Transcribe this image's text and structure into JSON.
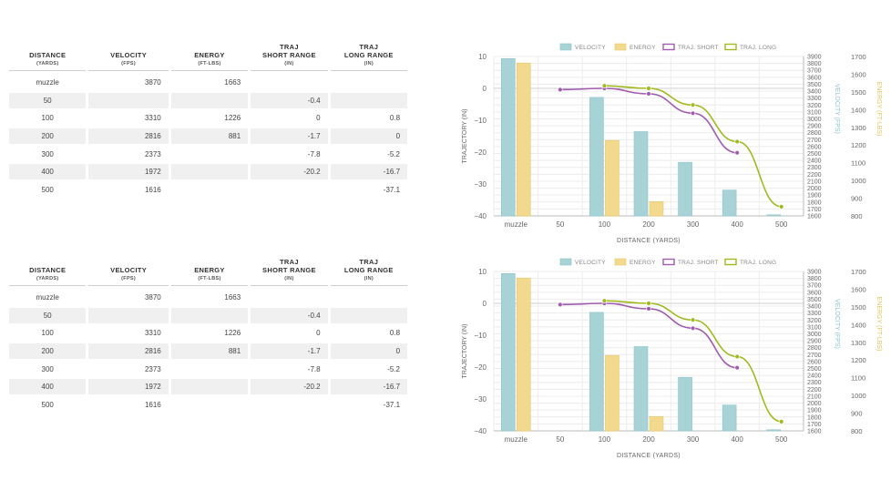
{
  "table": {
    "headers": [
      {
        "title": "DISTANCE",
        "sub": "(YARDS)"
      },
      {
        "title": "VELOCITY",
        "sub": "(FPS)"
      },
      {
        "title": "ENERGY",
        "sub": "(FT-LBS)"
      },
      {
        "title": "TRAJ SHORT RANGE",
        "title_l1": "TRAJ",
        "title_l2": "SHORT RANGE",
        "sub": "(IN)"
      },
      {
        "title": "TRAJ LONG RANGE",
        "title_l1": "TRAJ",
        "title_l2": "LONG RANGE",
        "sub": "(IN)"
      }
    ],
    "rows": [
      [
        "muzzle",
        "3870",
        "1663",
        "",
        ""
      ],
      [
        "50",
        "",
        "",
        "-0.4",
        ""
      ],
      [
        "100",
        "3310",
        "1226",
        "0",
        "0.8"
      ],
      [
        "200",
        "2816",
        "881",
        "-1.7",
        "0"
      ],
      [
        "300",
        "2373",
        "",
        "-7.8",
        "-5.2"
      ],
      [
        "400",
        "1972",
        "",
        "-20.2",
        "-16.7"
      ],
      [
        "500",
        "1616",
        "",
        "",
        "-37.1"
      ]
    ]
  },
  "colors": {
    "velocity": "#a8d3d6",
    "velocity_stroke": "#8fc3c7",
    "energy": "#f3d98e",
    "energy_stroke": "#e6c66a",
    "traj_short": "#a25bb0",
    "traj_long": "#a3b91f",
    "axis_left": "#666666",
    "axis_vel": "#8cc6cc",
    "axis_energy": "#e4c55c"
  },
  "chart_data": [
    {
      "type": "bar",
      "legend": [
        "VELOCITY",
        "ENERGY",
        "TRAJ. SHORT",
        "TRAJ. LONG"
      ],
      "legend_position": "top",
      "categories": [
        "muzzle",
        "50",
        "100",
        "200",
        "300",
        "400",
        "500"
      ],
      "xlabel": "DISTANCE (YARDS)",
      "ylabel_left": "TRAJECTORY (IN)",
      "ylabel_right1": "VELOCITY (FPS)",
      "ylabel_right2": "ENERGY (FT-LBS)",
      "ylim_left": [
        -40,
        10
      ],
      "yticks_left": [
        10,
        0,
        -10,
        -20,
        -30,
        -40
      ],
      "ylim_velocity": [
        1600,
        3900
      ],
      "yticks_velocity": [
        3900,
        3800,
        3700,
        3600,
        3500,
        3400,
        3300,
        3200,
        3100,
        3000,
        2900,
        2800,
        2700,
        2600,
        2500,
        2400,
        2300,
        2200,
        2100,
        2000,
        1900,
        1800,
        1700,
        1600
      ],
      "ylim_energy": [
        800,
        1700
      ],
      "yticks_energy": [
        1700,
        1600,
        1500,
        1400,
        1300,
        1200,
        1100,
        1000,
        900,
        800
      ],
      "series": [
        {
          "name": "VELOCITY",
          "kind": "bar",
          "axis": "velocity",
          "values": [
            3870,
            null,
            3310,
            2816,
            2373,
            1972,
            1616
          ]
        },
        {
          "name": "ENERGY",
          "kind": "bar",
          "axis": "energy",
          "values": [
            1663,
            null,
            1226,
            881,
            null,
            null,
            null
          ]
        },
        {
          "name": "TRAJ. SHORT",
          "kind": "line",
          "axis": "left",
          "values": [
            null,
            -0.4,
            0,
            -1.7,
            -7.8,
            -20.2,
            null
          ]
        },
        {
          "name": "TRAJ. LONG",
          "kind": "line",
          "axis": "left",
          "values": [
            null,
            null,
            0.8,
            0,
            -5.2,
            -16.7,
            -37.1
          ]
        }
      ]
    },
    {
      "type": "bar",
      "legend": [
        "VELOCITY",
        "ENERGY",
        "TRAJ. SHORT",
        "TRAJ. LONG"
      ],
      "legend_position": "top",
      "categories": [
        "muzzle",
        "50",
        "100",
        "200",
        "300",
        "400",
        "500"
      ],
      "xlabel": "DISTANCE (YARDS)",
      "ylabel_left": "TRAJECTORY (IN)",
      "ylabel_right1": "VELOCITY (FPS)",
      "ylabel_right2": "ENERGY (FT-LBS)",
      "ylim_left": [
        -40,
        10
      ],
      "yticks_left": [
        10,
        0,
        -10,
        -20,
        -30,
        -40
      ],
      "ylim_velocity": [
        1600,
        3900
      ],
      "yticks_velocity": [
        3900,
        3800,
        3700,
        3600,
        3500,
        3400,
        3300,
        3200,
        3100,
        3000,
        2900,
        2800,
        2700,
        2600,
        2500,
        2400,
        2300,
        2200,
        2100,
        2000,
        1900,
        1800,
        1700,
        1600
      ],
      "ylim_energy": [
        800,
        1700
      ],
      "yticks_energy": [
        1700,
        1600,
        1500,
        1400,
        1300,
        1200,
        1100,
        1000,
        900,
        800
      ],
      "series": [
        {
          "name": "VELOCITY",
          "kind": "bar",
          "axis": "velocity",
          "values": [
            3870,
            null,
            3310,
            2816,
            2373,
            1972,
            1616
          ]
        },
        {
          "name": "ENERGY",
          "kind": "bar",
          "axis": "energy",
          "values": [
            1663,
            null,
            1226,
            881,
            null,
            null,
            null
          ]
        },
        {
          "name": "TRAJ. SHORT",
          "kind": "line",
          "axis": "left",
          "values": [
            null,
            -0.4,
            0,
            -1.7,
            -7.8,
            -20.2,
            null
          ]
        },
        {
          "name": "TRAJ. LONG",
          "kind": "line",
          "axis": "left",
          "values": [
            null,
            null,
            0.8,
            0,
            -5.2,
            -16.7,
            -37.1
          ]
        }
      ]
    }
  ]
}
